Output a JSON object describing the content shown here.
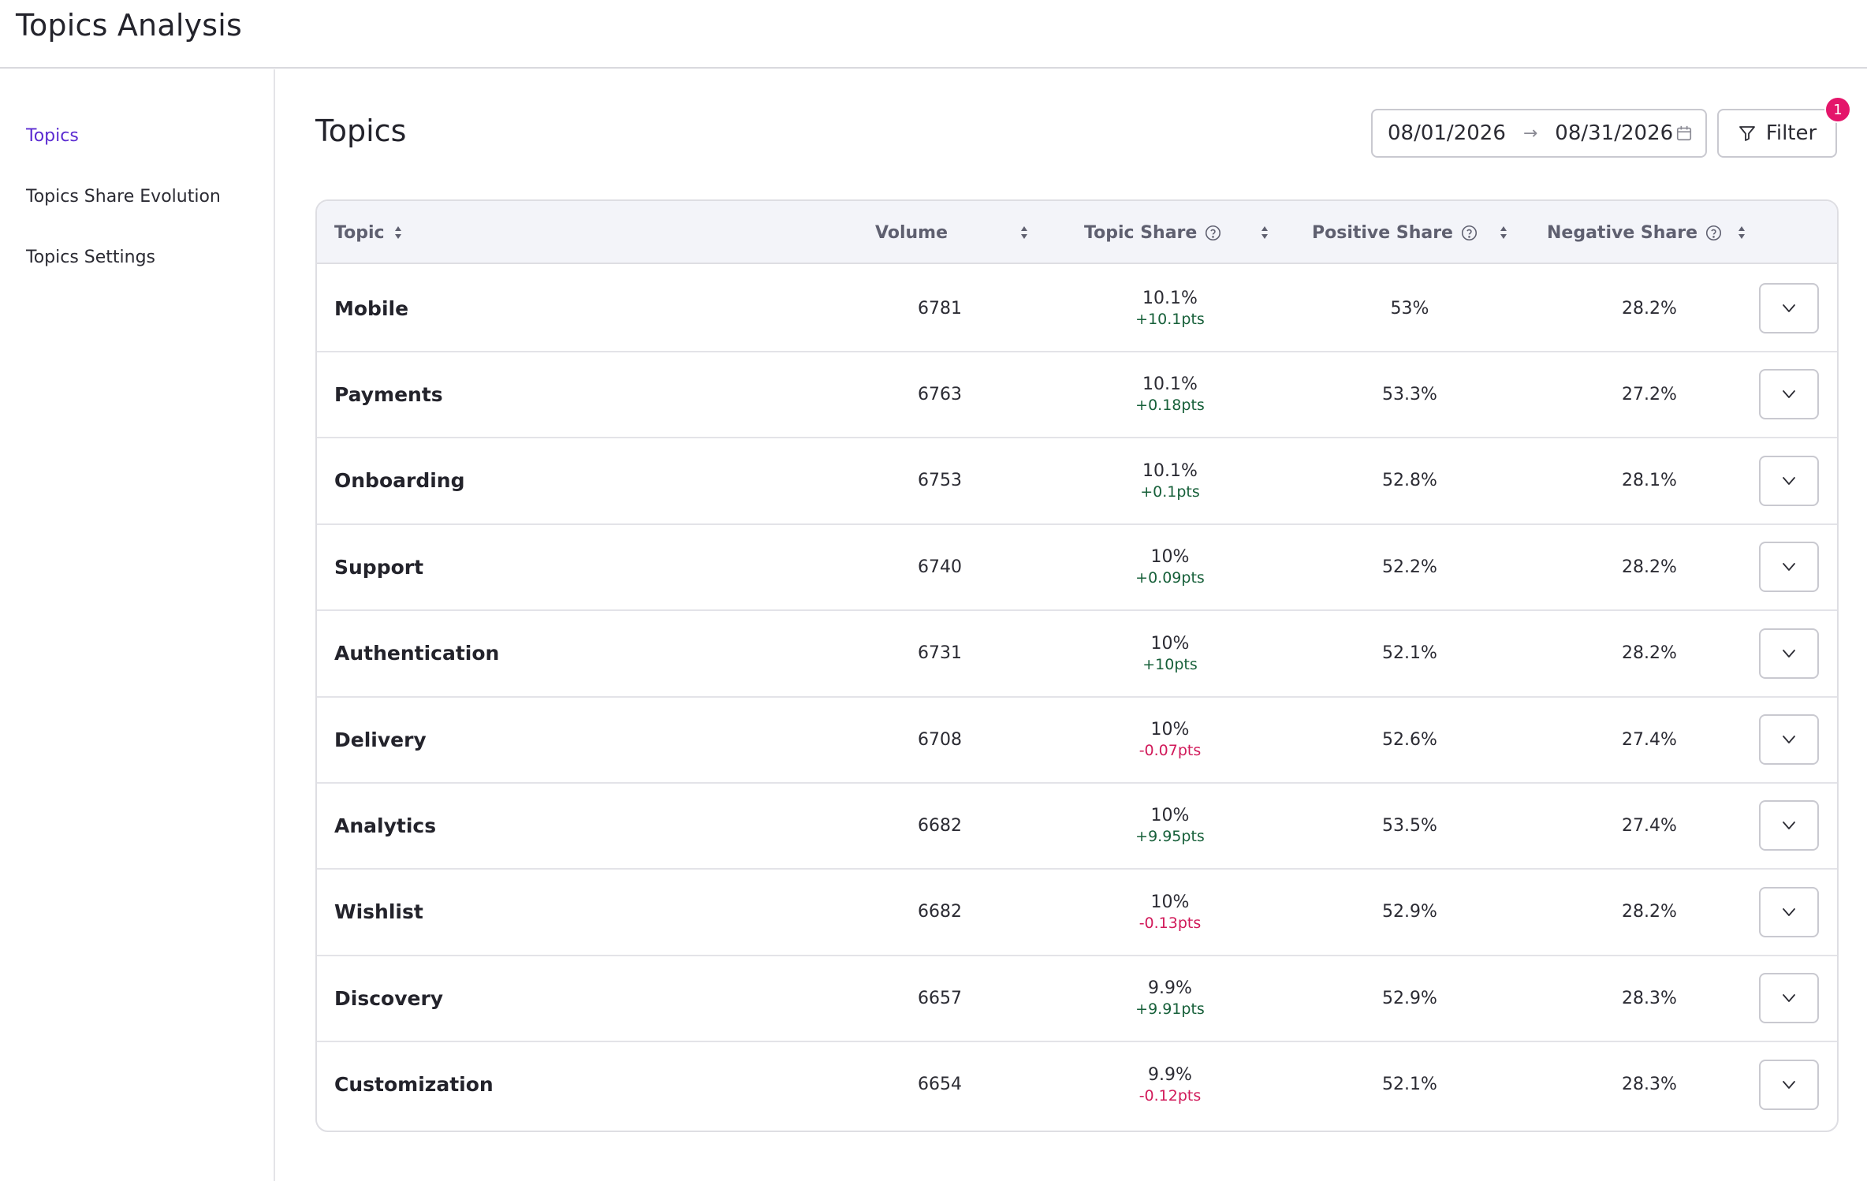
{
  "app": {
    "title": "Topics Analysis"
  },
  "sidebar": {
    "items": [
      {
        "label": "Topics",
        "active": true
      },
      {
        "label": "Topics Share Evolution",
        "active": false
      },
      {
        "label": "Topics Settings",
        "active": false
      }
    ]
  },
  "page": {
    "title": "Topics"
  },
  "date_range": {
    "start": "08/01/2026",
    "end": "08/31/2026",
    "icon": "calendar-icon"
  },
  "filter": {
    "label": "Filter",
    "count": "1",
    "icon": "funnel-icon"
  },
  "colors": {
    "accent": "#5b2bd1",
    "positive": "#17603a",
    "negative": "#d11a5a",
    "badge": "#e4156a"
  },
  "table": {
    "columns": {
      "topic": "Topic",
      "volume": "Volume",
      "topic_share": "Topic Share",
      "positive_share": "Positive Share",
      "negative_share": "Negative Share"
    },
    "rows": [
      {
        "topic": "Mobile",
        "volume": "6781",
        "share": "10.1%",
        "delta": "+10.1pts",
        "delta_dir": "pos",
        "positive": "53%",
        "negative": "28.2%"
      },
      {
        "topic": "Payments",
        "volume": "6763",
        "share": "10.1%",
        "delta": "+0.18pts",
        "delta_dir": "pos",
        "positive": "53.3%",
        "negative": "27.2%"
      },
      {
        "topic": "Onboarding",
        "volume": "6753",
        "share": "10.1%",
        "delta": "+0.1pts",
        "delta_dir": "pos",
        "positive": "52.8%",
        "negative": "28.1%"
      },
      {
        "topic": "Support",
        "volume": "6740",
        "share": "10%",
        "delta": "+0.09pts",
        "delta_dir": "pos",
        "positive": "52.2%",
        "negative": "28.2%"
      },
      {
        "topic": "Authentication",
        "volume": "6731",
        "share": "10%",
        "delta": "+10pts",
        "delta_dir": "pos",
        "positive": "52.1%",
        "negative": "28.2%"
      },
      {
        "topic": "Delivery",
        "volume": "6708",
        "share": "10%",
        "delta": "-0.07pts",
        "delta_dir": "neg",
        "positive": "52.6%",
        "negative": "27.4%"
      },
      {
        "topic": "Analytics",
        "volume": "6682",
        "share": "10%",
        "delta": "+9.95pts",
        "delta_dir": "pos",
        "positive": "53.5%",
        "negative": "27.4%"
      },
      {
        "topic": "Wishlist",
        "volume": "6682",
        "share": "10%",
        "delta": "-0.13pts",
        "delta_dir": "neg",
        "positive": "52.9%",
        "negative": "28.2%"
      },
      {
        "topic": "Discovery",
        "volume": "6657",
        "share": "9.9%",
        "delta": "+9.91pts",
        "delta_dir": "pos",
        "positive": "52.9%",
        "negative": "28.3%"
      },
      {
        "topic": "Customization",
        "volume": "6654",
        "share": "9.9%",
        "delta": "-0.12pts",
        "delta_dir": "neg",
        "positive": "52.1%",
        "negative": "28.3%"
      }
    ]
  }
}
